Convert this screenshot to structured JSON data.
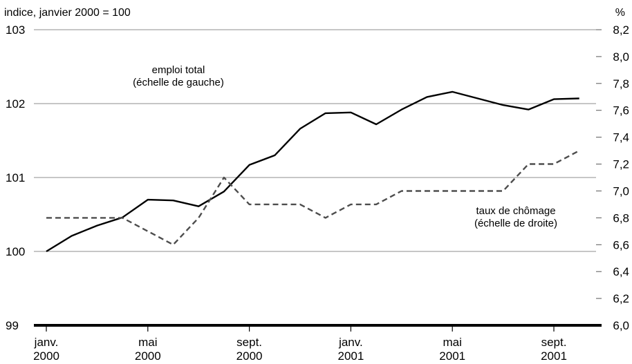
{
  "chart_data": {
    "type": "line",
    "left_axis_title": "indice, janvier 2000 = 100",
    "right_axis_title": "%",
    "left_axis": {
      "min": 99,
      "max": 103,
      "ticks": [
        "99",
        "100",
        "101",
        "102",
        "103"
      ]
    },
    "right_axis": {
      "min": 6.0,
      "max": 8.2,
      "ticks": [
        "6,0",
        "6,2",
        "6,4",
        "6,6",
        "6,8",
        "7,0",
        "7,2",
        "7,4",
        "7,6",
        "7,8",
        "8,0",
        "8,2"
      ]
    },
    "x_ticks": [
      {
        "month": "janv.",
        "year": "2000"
      },
      {
        "month": "mai",
        "year": "2000"
      },
      {
        "month": "sept.",
        "year": "2000"
      },
      {
        "month": "janv.",
        "year": "2001"
      },
      {
        "month": "mai",
        "year": "2001"
      },
      {
        "month": "sept.",
        "year": "2001"
      }
    ],
    "months": [
      "janv. 2000",
      "févr. 2000",
      "mars 2000",
      "avr. 2000",
      "mai 2000",
      "juin 2000",
      "juil. 2000",
      "août 2000",
      "sept. 2000",
      "oct. 2000",
      "nov. 2000",
      "déc. 2000",
      "janv. 2001",
      "févr. 2001",
      "mars 2001",
      "avr. 2001",
      "mai 2001",
      "juin 2001",
      "juil. 2001",
      "août 2001",
      "sept. 2001",
      "oct. 2001"
    ],
    "series": [
      {
        "name": "emploi total",
        "annotation": [
          "emploi total",
          "(échelle de gauche)"
        ],
        "axis": "left",
        "style": "solid",
        "values": [
          100.0,
          100.21,
          100.35,
          100.46,
          100.7,
          100.69,
          100.61,
          100.81,
          101.17,
          101.3,
          101.66,
          101.87,
          101.88,
          101.72,
          101.92,
          102.09,
          102.16,
          102.07,
          101.98,
          101.92,
          102.06,
          102.07
        ]
      },
      {
        "name": "taux de chômage",
        "annotation": [
          "taux de chômage",
          "(échelle de droite)"
        ],
        "axis": "right",
        "style": "dashed",
        "values": [
          6.8,
          6.8,
          6.8,
          6.8,
          6.7,
          6.6,
          6.8,
          7.1,
          6.9,
          6.9,
          6.9,
          6.8,
          6.9,
          6.9,
          7.0,
          7.0,
          7.0,
          7.0,
          7.0,
          7.2,
          7.2,
          7.3
        ]
      }
    ]
  }
}
